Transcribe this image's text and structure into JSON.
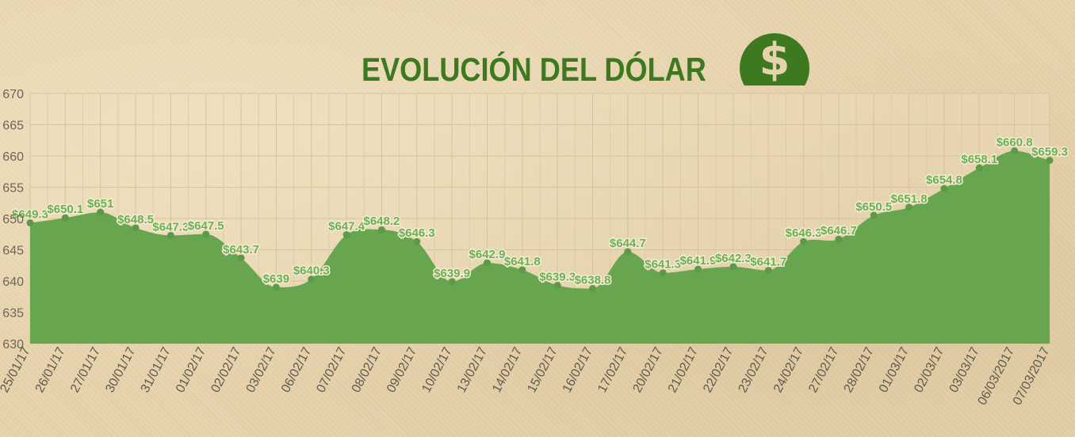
{
  "title": "EVOLUCIÓN DEL DÓLAR",
  "icon": "dollar-circle-icon",
  "colors": {
    "title": "#3d7a1f",
    "area": "#67a64e",
    "label": "#6bb153",
    "background": "#e6d3ac"
  },
  "chart_data": {
    "type": "area",
    "title": "EVOLUCIÓN DEL DÓLAR",
    "xlabel": "",
    "ylabel": "",
    "ylim": [
      630,
      670
    ],
    "yticks": [
      630,
      635,
      640,
      645,
      650,
      655,
      660,
      665,
      670
    ],
    "grid": true,
    "categories": [
      "25/01/17",
      "26/01/17",
      "27/01/17",
      "30/01/17",
      "31/01/17",
      "01/02/17",
      "02/02/17",
      "03/02/17",
      "06/02/17",
      "07/02/17",
      "08/02/17",
      "09/02/17",
      "10/02/17",
      "13/02/17",
      "14/02/17",
      "15/02/17",
      "16/02/17",
      "17/02/17",
      "20/02/17",
      "21/02/17",
      "22/02/17",
      "23/02/17",
      "24/02/17",
      "27/02/17",
      "28/02/17",
      "01/03/17",
      "02/03/17",
      "03/03/17",
      "06/03/2017",
      "07/03/2017"
    ],
    "values": [
      649.3,
      650.1,
      651,
      648.5,
      647.3,
      647.5,
      643.7,
      639,
      640.3,
      647.4,
      648.2,
      646.3,
      639.9,
      642.9,
      641.8,
      639.3,
      638.8,
      644.7,
      641.3,
      641.9,
      642.3,
      641.7,
      646.3,
      646.7,
      650.5,
      651.8,
      654.8,
      658.1,
      660.8,
      659.3
    ],
    "data_labels": [
      "$649.3",
      "$650.1",
      "$651",
      "$648.5",
      "$647.3",
      "$647.5",
      "$643.7",
      "$639",
      "$640.3",
      "$647.4",
      "$648.2",
      "$646.3",
      "$639.9",
      "$642.9",
      "$641.8",
      "$639.3",
      "$638.8",
      "$644.7",
      "$641.3",
      "$641.9",
      "$642.3",
      "$641.7",
      "$646.3",
      "$646.7",
      "$650.5",
      "$651.8",
      "$654.8",
      "$658.1",
      "$660.8",
      "$659.3"
    ]
  }
}
